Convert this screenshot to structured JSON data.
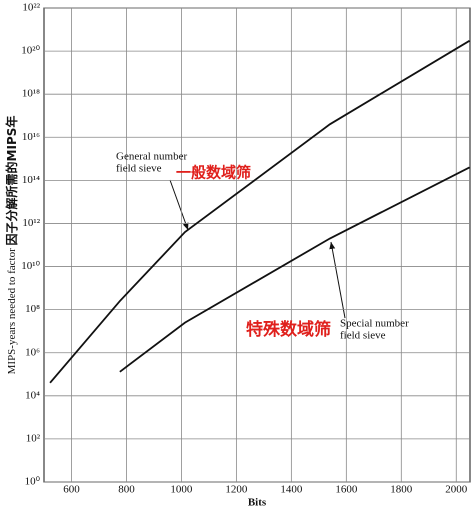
{
  "chart_data": {
    "type": "line",
    "yscale": "log",
    "grid": true,
    "xlabel": "Bits",
    "ylabel": "MIPS-years needed to factor",
    "ylabel_cn": "因子分解所需的MIPS年",
    "xlim": [
      500,
      2050
    ],
    "xticks": [
      600,
      800,
      1000,
      1200,
      1400,
      1600,
      1800,
      2000
    ],
    "ylim": [
      1,
      1e+22
    ],
    "yticks": [
      {
        "value": 1,
        "label": "10⁰"
      },
      {
        "value": 100,
        "label": "10²"
      },
      {
        "value": 10000,
        "label": "10⁴"
      },
      {
        "value": 1000000,
        "label": "10⁶"
      },
      {
        "value": 100000000,
        "label": "10⁸"
      },
      {
        "value": 10000000000,
        "label": "10¹⁰"
      },
      {
        "value": 1000000000000,
        "label": "10¹²"
      },
      {
        "value": 100000000000000,
        "label": "10¹⁴"
      },
      {
        "value": 10000000000000000,
        "label": "10¹⁶"
      },
      {
        "value": 1e+18,
        "label": "10¹⁸"
      },
      {
        "value": 1e+20,
        "label": "10²⁰"
      },
      {
        "value": 1e+22,
        "label": "10²²"
      }
    ],
    "series": [
      {
        "name": "General number field sieve",
        "color": "#111111",
        "x": [
          522,
          776,
          1013,
          1540,
          2048
        ],
        "values": [
          40000,
          250000000,
          400000000000,
          40000000000000000,
          3e+20
        ]
      },
      {
        "name": "Special number field sieve",
        "color": "#111111",
        "x": [
          776,
          1013,
          1540,
          2048
        ],
        "values": [
          130000,
          25000000,
          200000000000,
          400000000000000
        ]
      }
    ],
    "annotations": [
      {
        "lines": [
          "General number",
          "field sieve"
        ],
        "cn": "一般数域筛"
      },
      {
        "lines": [
          "Special number",
          "field sieve"
        ],
        "cn": "特殊数域筛"
      }
    ]
  }
}
